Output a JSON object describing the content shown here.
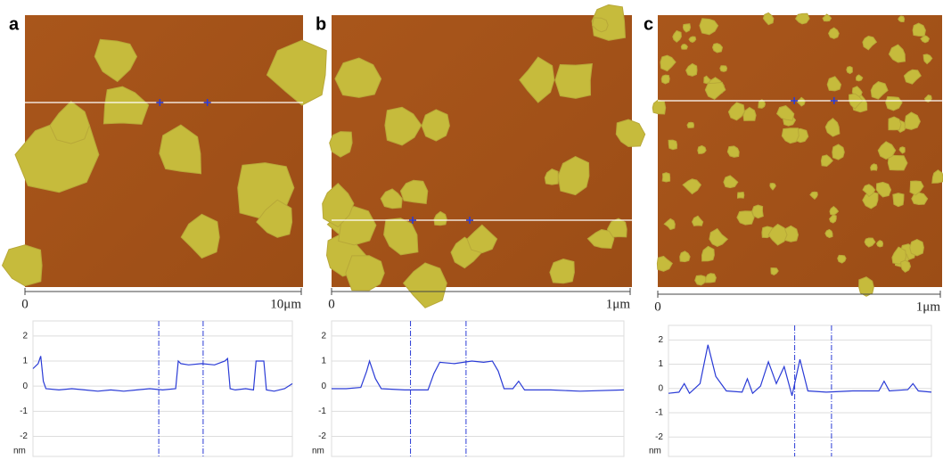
{
  "chart_data": [
    {
      "type": "line",
      "panel_label": "a",
      "scale_start": "0",
      "scale_end": "10μm",
      "y_unit": "nm",
      "xlim": [
        0,
        10
      ],
      "ylim": [
        -2.8,
        2.6
      ],
      "yticks": [
        2,
        1,
        0,
        -1,
        -2
      ],
      "grid": true,
      "cursors": [
        4.85,
        6.56
      ],
      "series": [
        {
          "color": "#2a3bd6",
          "x": [
            0,
            0.2,
            0.3,
            0.4,
            0.5,
            1.0,
            1.5,
            2.0,
            2.5,
            3.0,
            3.5,
            4.0,
            4.5,
            5.0,
            5.5,
            5.6,
            5.7,
            6.0,
            6.5,
            7.0,
            7.4,
            7.5,
            7.6,
            7.8,
            8.2,
            8.5,
            8.6,
            8.9,
            9.0,
            9.3,
            9.7,
            10
          ],
          "values": [
            0.7,
            0.9,
            1.2,
            0.2,
            -0.1,
            -0.15,
            -0.1,
            -0.15,
            -0.2,
            -0.15,
            -0.2,
            -0.15,
            -0.1,
            -0.15,
            -0.1,
            1.0,
            0.9,
            0.85,
            0.9,
            0.85,
            1.0,
            1.1,
            -0.1,
            -0.15,
            -0.1,
            -0.15,
            1.0,
            1.0,
            -0.15,
            -0.2,
            -0.1,
            0.1
          ]
        }
      ]
    },
    {
      "type": "line",
      "panel_label": "b",
      "scale_start": "0",
      "scale_end": "1μm",
      "y_unit": "nm",
      "xlim": [
        0,
        1
      ],
      "ylim": [
        -2.8,
        2.6
      ],
      "yticks": [
        2,
        1,
        0,
        -1,
        -2
      ],
      "grid": true,
      "cursors": [
        0.27,
        0.46
      ],
      "series": [
        {
          "color": "#2a3bd6",
          "x": [
            0,
            0.05,
            0.1,
            0.12,
            0.13,
            0.15,
            0.17,
            0.25,
            0.33,
            0.35,
            0.37,
            0.42,
            0.48,
            0.52,
            0.55,
            0.57,
            0.59,
            0.62,
            0.64,
            0.66,
            0.75,
            0.85,
            1.0
          ],
          "values": [
            -0.1,
            -0.1,
            -0.05,
            0.6,
            1.0,
            0.3,
            -0.1,
            -0.15,
            -0.15,
            0.5,
            0.95,
            0.9,
            1.0,
            0.95,
            1.0,
            0.6,
            -0.1,
            -0.1,
            0.2,
            -0.15,
            -0.15,
            -0.2,
            -0.15
          ]
        }
      ]
    },
    {
      "type": "line",
      "panel_label": "c",
      "scale_start": "0",
      "scale_end": "1μm",
      "y_unit": "nm",
      "xlim": [
        0,
        1
      ],
      "ylim": [
        -2.8,
        2.6
      ],
      "yticks": [
        2,
        1,
        0,
        -1,
        -2
      ],
      "grid": true,
      "cursors": [
        0.48,
        0.62
      ],
      "series": [
        {
          "color": "#2a3bd6",
          "x": [
            0,
            0.04,
            0.06,
            0.08,
            0.12,
            0.15,
            0.18,
            0.22,
            0.28,
            0.3,
            0.32,
            0.35,
            0.38,
            0.41,
            0.44,
            0.47,
            0.5,
            0.53,
            0.6,
            0.7,
            0.8,
            0.82,
            0.84,
            0.91,
            0.93,
            0.95,
            1.0
          ],
          "values": [
            -0.2,
            -0.15,
            0.2,
            -0.2,
            0.2,
            1.8,
            0.5,
            -0.1,
            -0.15,
            0.4,
            -0.2,
            0.1,
            1.1,
            0.2,
            0.9,
            -0.3,
            1.2,
            -0.1,
            -0.15,
            -0.1,
            -0.1,
            0.3,
            -0.1,
            -0.05,
            0.2,
            -0.1,
            -0.15
          ]
        }
      ]
    }
  ]
}
